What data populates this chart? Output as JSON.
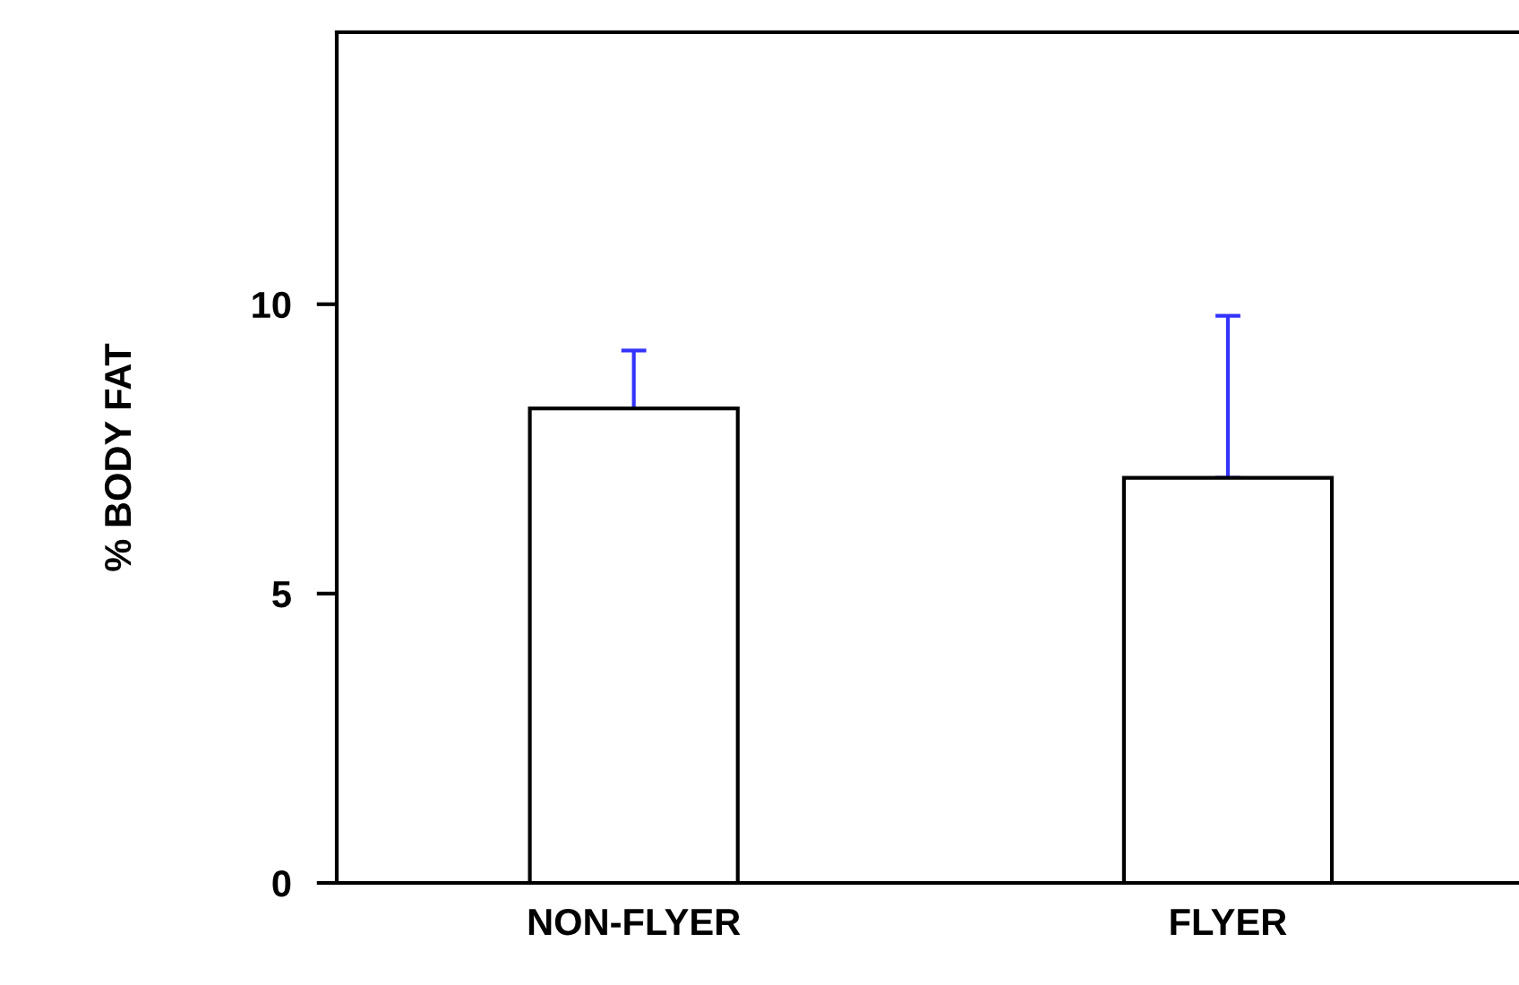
{
  "chart_data": {
    "type": "bar",
    "ylabel": "% BODY FAT",
    "categories": [
      "NON-FLYER",
      "FLYER"
    ],
    "values": [
      8.2,
      7.0
    ],
    "color": "#ffffff",
    "errors": [
      [
        8.2,
        9.2
      ],
      [
        7.0,
        9.8
      ]
    ],
    "ylim": [
      0,
      14.7
    ],
    "yticks": [
      0,
      5,
      10
    ],
    "grid": false,
    "legend": false
  }
}
